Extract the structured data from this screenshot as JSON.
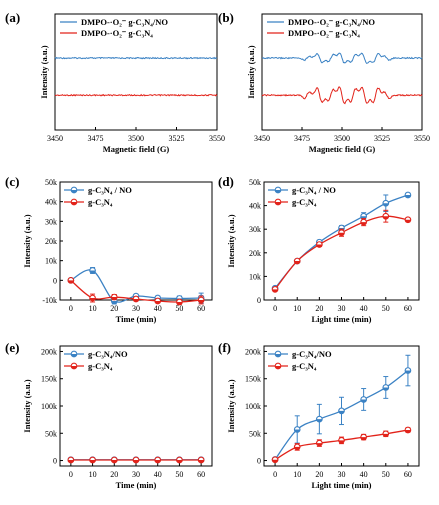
{
  "colors": {
    "blue": "#3b82c4",
    "red": "#e2231a"
  },
  "chart_data": [
    {
      "panel": "(a)",
      "type": "line",
      "xlabel": "Magnetic field (G)",
      "ylabel": "Intensity (a.u.)",
      "xlim": [
        3450,
        3550
      ],
      "xticks": [
        "3450",
        "3475",
        "3500",
        "3525",
        "3550"
      ],
      "legend_position": "top-left",
      "series": [
        {
          "name": "DMPO-·O₂⁻ g-C₃N₄/NO",
          "color": "#3b82c4",
          "offset": 0.62,
          "pattern": "flat"
        },
        {
          "name": "DMPO-·O₂⁻ g-C₃N₄",
          "color": "#e2231a",
          "offset": 0.3,
          "pattern": "flat"
        }
      ]
    },
    {
      "panel": "(b)",
      "type": "line",
      "xlabel": "Magnetic field (G)",
      "ylabel": "Intensity (a.u.)",
      "xlim": [
        3450,
        3550
      ],
      "xticks": [
        "3450",
        "3475",
        "3500",
        "3525",
        "3550"
      ],
      "legend_position": "top-left",
      "series": [
        {
          "name": "DMPO-·O₂⁻ g-C₃N₄/NO",
          "color": "#3b82c4",
          "offset": 0.62,
          "pattern": "epr",
          "amplitude": 0.05
        },
        {
          "name": "DMPO-·O₂⁻ g-C₃N₄",
          "color": "#e2231a",
          "offset": 0.3,
          "pattern": "epr",
          "amplitude": 0.08
        }
      ]
    },
    {
      "panel": "(c)",
      "type": "line",
      "xlabel": "Time (min)",
      "ylabel": "Intensity (a.u.)",
      "x": [
        0,
        10,
        20,
        30,
        40,
        50,
        60
      ],
      "ylim": [
        -10000,
        50000
      ],
      "yticks": [
        -10000,
        0,
        10000,
        20000,
        30000,
        40000,
        50000
      ],
      "ytick_labels": [
        "-10k",
        "0",
        "10k",
        "20k",
        "30k",
        "40k",
        "50k"
      ],
      "legend_position": "top-left",
      "series": [
        {
          "name": "g-C₃N₄ / NO",
          "color": "#3b82c4",
          "marker": "circle",
          "values": [
            0,
            5000,
            -10500,
            -8000,
            -9000,
            -9200,
            -9000
          ],
          "errors": [
            300,
            1500,
            1500,
            900,
            1000,
            1200,
            2500
          ]
        },
        {
          "name": "g-C₃N₄",
          "color": "#e2231a",
          "marker": "circle",
          "values": [
            0,
            -9000,
            -8500,
            -9500,
            -10500,
            -11000,
            -10000
          ],
          "errors": [
            300,
            2000,
            1300,
            900,
            900,
            1200,
            2000
          ]
        }
      ]
    },
    {
      "panel": "(d)",
      "type": "line",
      "xlabel": "Light time (min)",
      "ylabel": "Intensity (a.u.)",
      "x": [
        0,
        10,
        20,
        30,
        40,
        50,
        60
      ],
      "ylim": [
        0,
        50000
      ],
      "yticks": [
        0,
        10000,
        20000,
        30000,
        40000,
        50000
      ],
      "ytick_labels": [
        "0",
        "10k",
        "20k",
        "30k",
        "40k",
        "50k"
      ],
      "legend_position": "top-left",
      "series": [
        {
          "name": "g-C₃N₄ / NO",
          "color": "#3b82c4",
          "marker": "circle",
          "values": [
            5000,
            16500,
            24500,
            30500,
            35500,
            41000,
            44500
          ],
          "errors": [
            400,
            500,
            800,
            1000,
            1500,
            3500,
            800
          ]
        },
        {
          "name": "g-C₃N₄",
          "color": "#e2231a",
          "marker": "circle",
          "values": [
            4500,
            16500,
            23500,
            28500,
            33000,
            35500,
            34000
          ],
          "errors": [
            400,
            500,
            800,
            1500,
            1500,
            2500,
            800
          ]
        }
      ]
    },
    {
      "panel": "(e)",
      "type": "line",
      "xlabel": "Time (min)",
      "ylabel": "Intensity (a.u.)",
      "x": [
        0,
        10,
        20,
        30,
        40,
        50,
        60
      ],
      "ylim": [
        -10000,
        210000
      ],
      "yticks": [
        0,
        50000,
        100000,
        150000,
        200000
      ],
      "ytick_labels": [
        "0",
        "50k",
        "100k",
        "150k",
        "200k"
      ],
      "legend_position": "top-left",
      "series": [
        {
          "name": "g-C₃N₄/NO",
          "color": "#3b82c4",
          "marker": "circle",
          "values": [
            1500,
            1500,
            1500,
            1500,
            1500,
            1500,
            1500
          ],
          "errors": [
            1500,
            1500,
            1500,
            1500,
            1500,
            1500,
            1500
          ]
        },
        {
          "name": "g-C₃N₄",
          "color": "#e2231a",
          "marker": "circle",
          "values": [
            1000,
            1000,
            1000,
            1000,
            1000,
            1000,
            1000
          ],
          "errors": [
            2500,
            2500,
            2500,
            2500,
            2500,
            2500,
            2500
          ]
        }
      ]
    },
    {
      "panel": "(f)",
      "type": "line",
      "xlabel": "Light time (min)",
      "ylabel": "Intensity (a.u.)",
      "x": [
        0,
        10,
        20,
        30,
        40,
        50,
        60
      ],
      "ylim": [
        -10000,
        210000
      ],
      "yticks": [
        0,
        50000,
        100000,
        150000,
        200000
      ],
      "ytick_labels": [
        "0",
        "50k",
        "100k",
        "150k",
        "200k"
      ],
      "legend_position": "top-left",
      "series": [
        {
          "name": "g-C₃N₄/NO",
          "color": "#3b82c4",
          "marker": "circle",
          "values": [
            2000,
            57000,
            76000,
            91000,
            112000,
            134000,
            165000
          ],
          "errors": [
            1500,
            25000,
            27000,
            25000,
            20000,
            20000,
            28000
          ]
        },
        {
          "name": "g-C₃N₄",
          "color": "#e2231a",
          "marker": "circle",
          "values": [
            1500,
            25000,
            32000,
            37000,
            43000,
            49000,
            56000
          ],
          "errors": [
            1500,
            6000,
            6000,
            6000,
            5000,
            5000,
            4000
          ]
        }
      ]
    }
  ]
}
